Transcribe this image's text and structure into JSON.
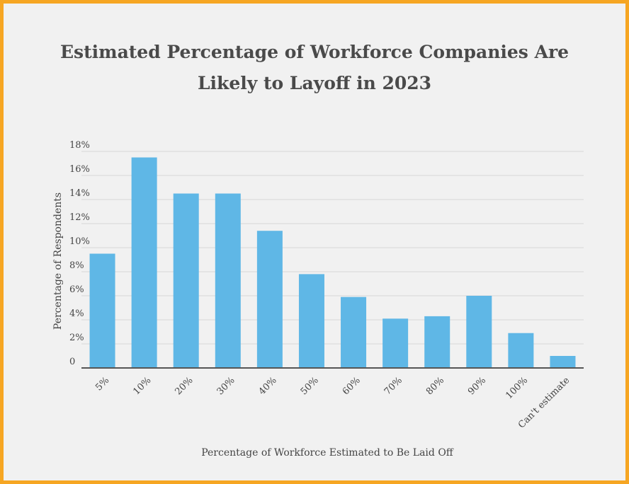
{
  "chart_data": {
    "type": "bar",
    "title_lines": [
      "Estimated Percentage of Workforce Companies Are",
      "Likely to Layoff in 2023"
    ],
    "xlabel": "Percentage of Workforce Estimated to Be Laid Off",
    "ylabel": "Percentage of Respondents",
    "categories": [
      "5%",
      "10%",
      "20%",
      "30%",
      "40%",
      "50%",
      "60%",
      "70%",
      "80%",
      "90%",
      "100%",
      "Can't estimate"
    ],
    "values": [
      9.5,
      17.5,
      14.5,
      14.5,
      11.4,
      7.8,
      5.9,
      4.1,
      4.3,
      6.0,
      2.9,
      1.0
    ],
    "ylim": [
      0,
      18
    ],
    "yticks": [
      0,
      2,
      4,
      6,
      8,
      10,
      12,
      14,
      16,
      18
    ],
    "ytick_labels": [
      "0",
      "2%",
      "4%",
      "6%",
      "8%",
      "10%",
      "12%",
      "14%",
      "16%",
      "18%"
    ],
    "grid": true,
    "colors": {
      "bar": "#5fb7e6",
      "border": "#f6a623",
      "background": "#f1f1f1",
      "grid": "#d6d6d6",
      "axis": "#555555"
    }
  }
}
